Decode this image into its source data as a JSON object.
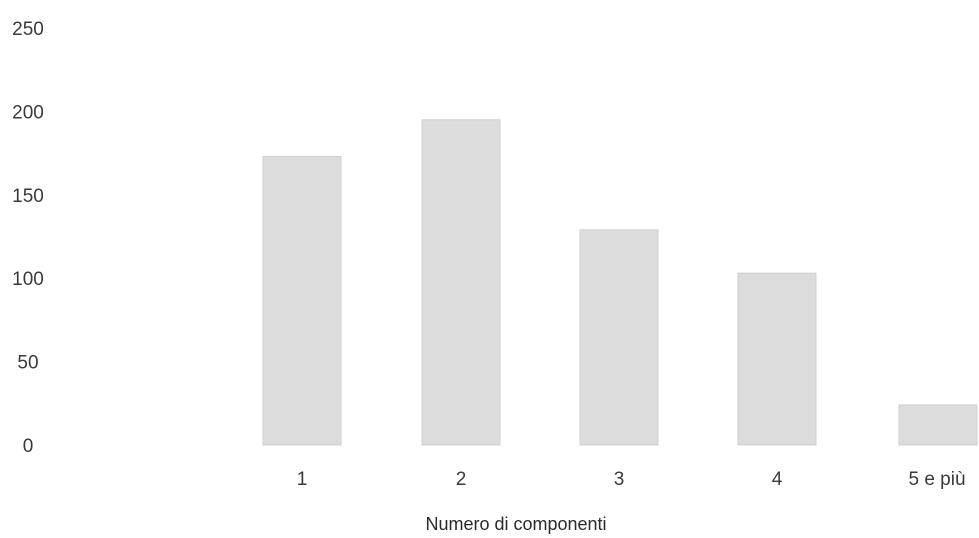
{
  "chart_data": {
    "type": "bar",
    "title": "",
    "xlabel": "Numero di componenti",
    "ylabel": "",
    "categories": [
      "1",
      "2",
      "3",
      "4",
      "5 e più"
    ],
    "values": [
      173,
      195,
      129,
      103,
      24
    ],
    "ylim": [
      0,
      250
    ],
    "yticks": [
      0,
      50,
      100,
      150,
      200,
      250
    ],
    "grid": false,
    "legend": "none",
    "bar_color": "#dcdcdc",
    "bar_border_color": "#cfcfcf"
  }
}
